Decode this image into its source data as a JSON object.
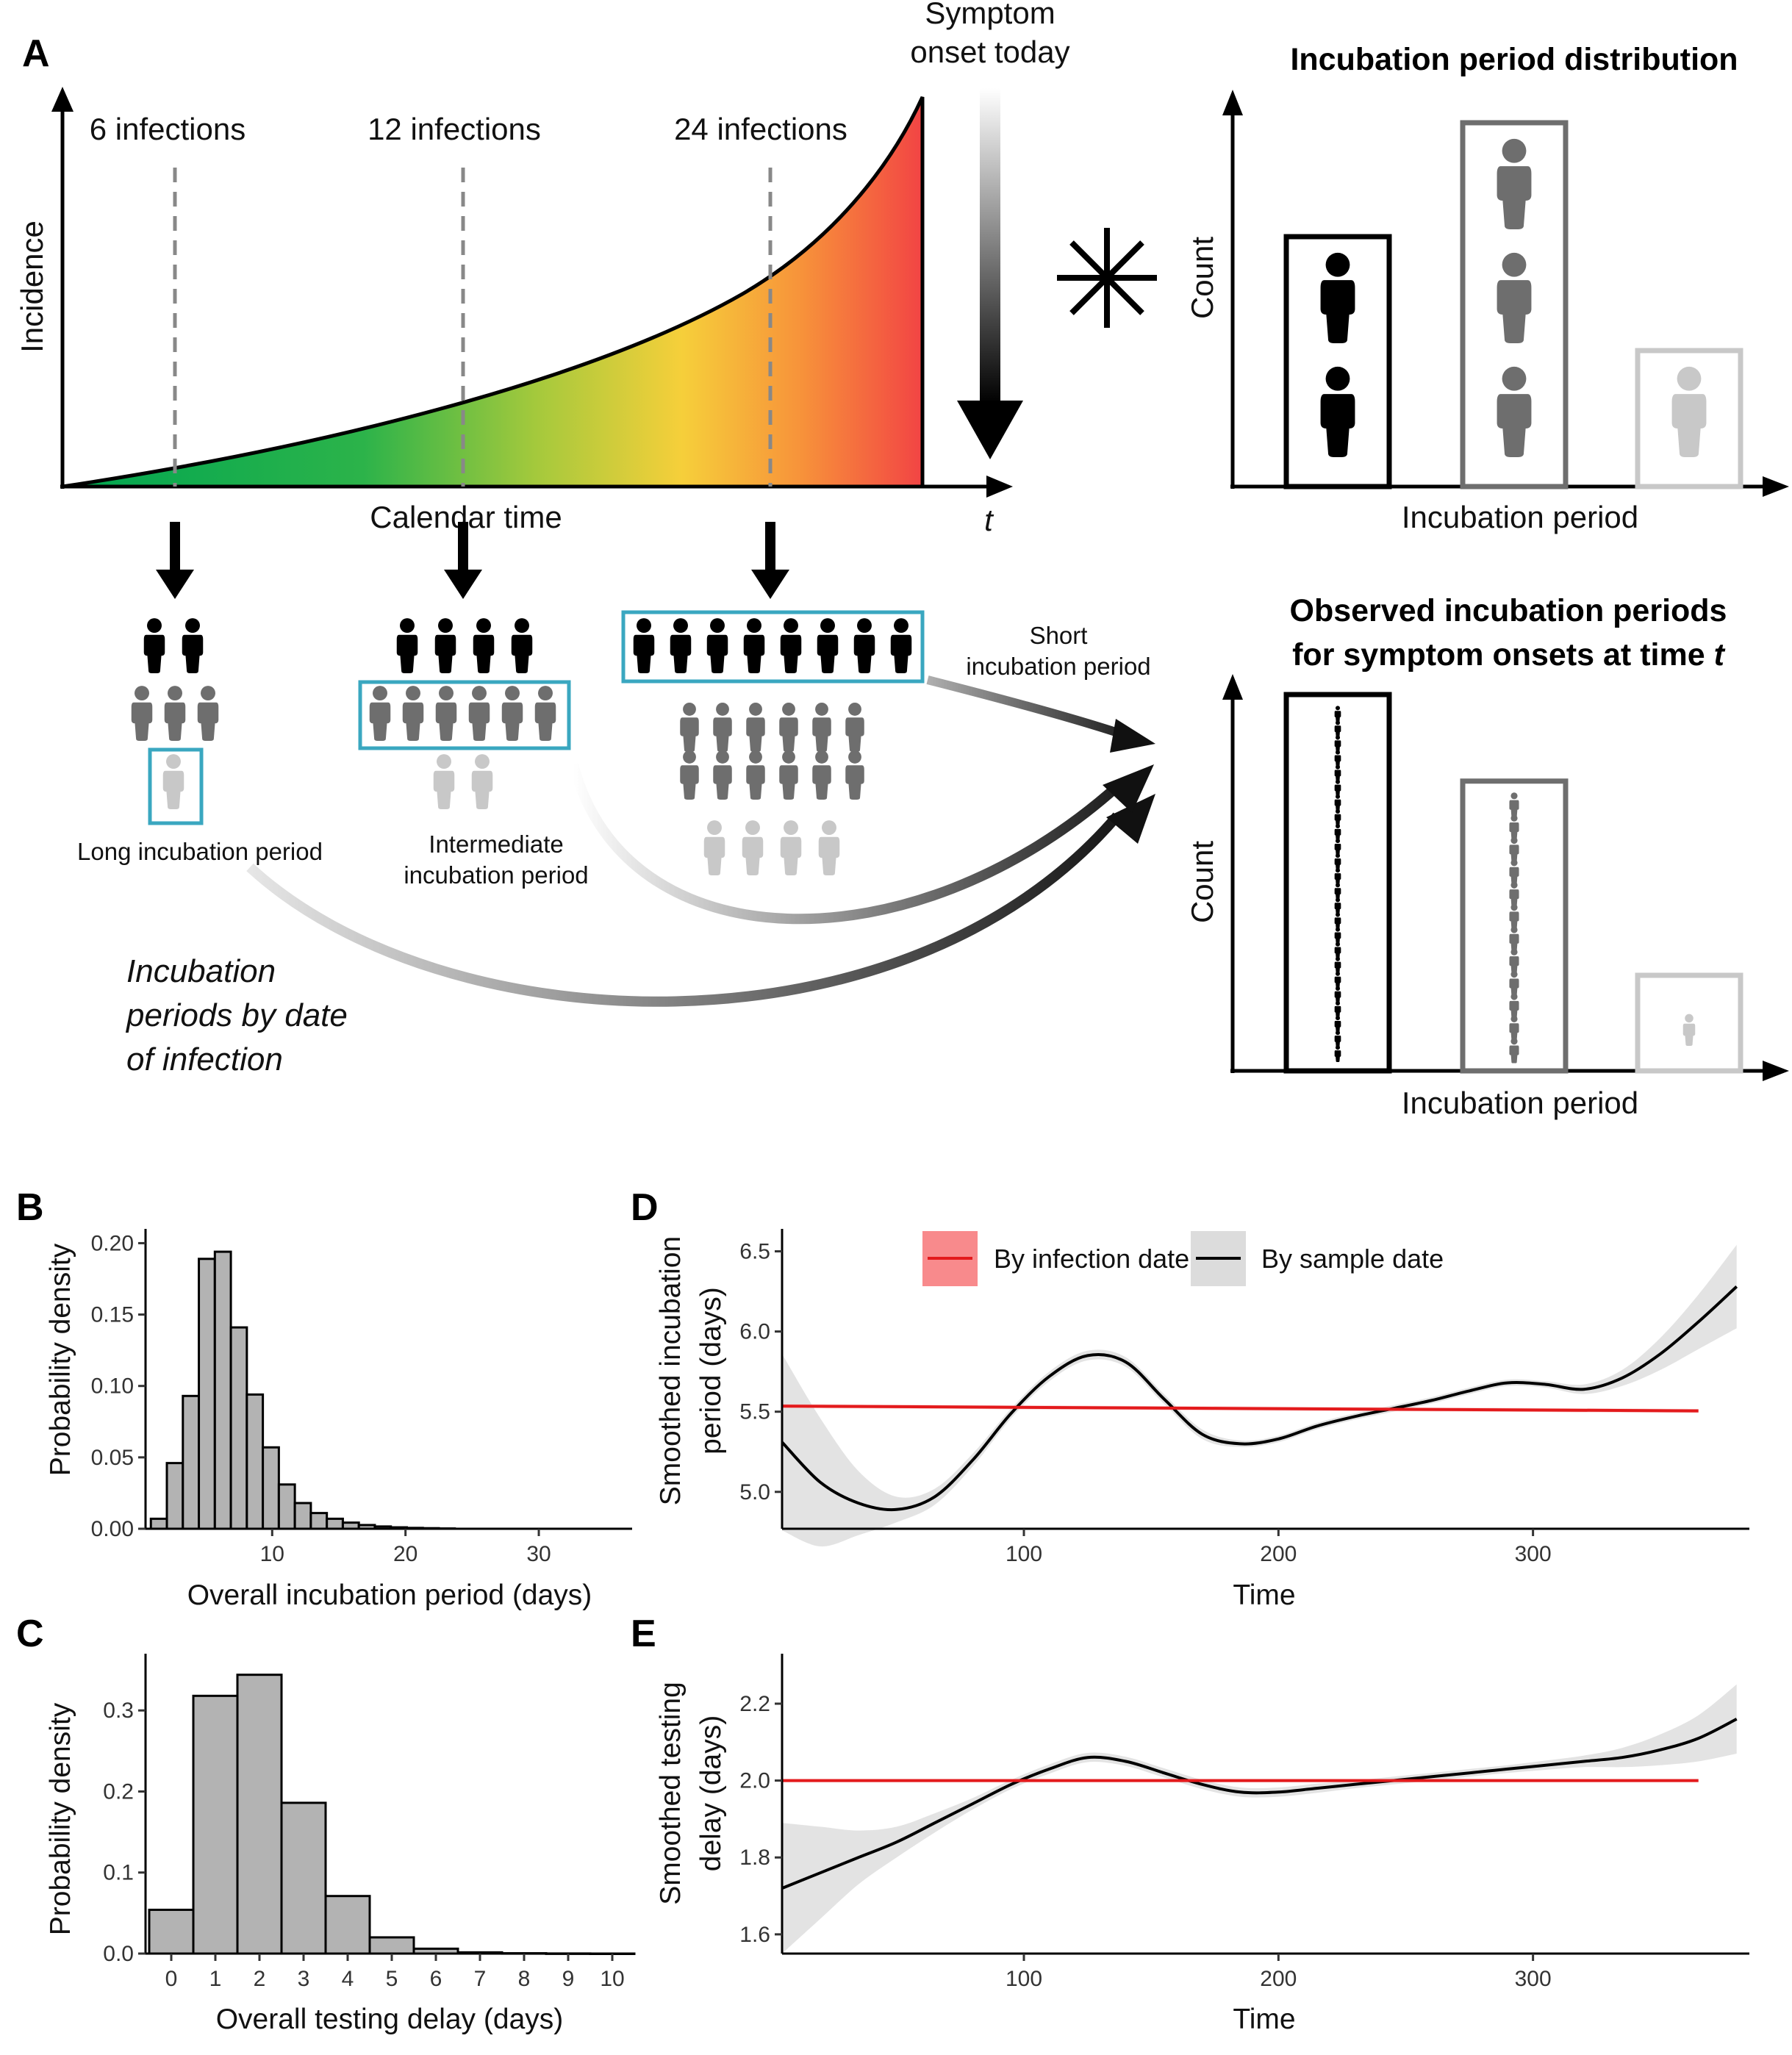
{
  "panel_A": {
    "letter": "A",
    "y_axis_label": "Incidence",
    "x_axis_label": "Calendar time",
    "t_label": "t",
    "onset_label_line1": "Symptom",
    "onset_label_line2": "onset today",
    "infection_labels": [
      "6 infections",
      "12 infections",
      "24 infections"
    ],
    "group_labels": {
      "long": "Long incubation period",
      "intermediate_line1": "Intermediate",
      "intermediate_line2": "incubation period",
      "short_line1": "Short",
      "short_line2": "incubation period"
    },
    "italic_label_lines": [
      "Incubation",
      "periods by date",
      "of infection"
    ],
    "dist_title": "Incubation period distribution",
    "obs_title_line1": "Observed incubation periods",
    "obs_title_line2_prefix": "for symptom onsets at time ",
    "obs_title_line2_t": "t",
    "count_label": "Count",
    "incubation_axis_label": "Incubation period",
    "distribution_counts": [
      2,
      3,
      1
    ],
    "observed_counts": [
      24,
      12,
      1
    ],
    "colors": {
      "short": "#000000",
      "intermediate": "#6e6e6e",
      "long": "#c8c8c8",
      "highlight": "#3aa7c0"
    }
  },
  "panel_B": {
    "letter": "B",
    "chart_data": {
      "type": "bar",
      "xlabel": "Overall incubation period (days)",
      "ylabel": "Probability density",
      "xticks": [
        10,
        20,
        30
      ],
      "yticks": [
        "0.00",
        "0.05",
        "0.10",
        "0.15",
        "0.20"
      ],
      "ylim": [
        0,
        0.21
      ],
      "xlim": [
        0.5,
        37
      ],
      "bin_width": 1.2,
      "bin_start": 0.9,
      "values": [
        0.007,
        0.046,
        0.093,
        0.189,
        0.194,
        0.141,
        0.094,
        0.057,
        0.031,
        0.018,
        0.011,
        0.007,
        0.0043,
        0.0026,
        0.0016,
        0.001,
        0.0006,
        0.0004,
        0.0002
      ]
    }
  },
  "panel_C": {
    "letter": "C",
    "chart_data": {
      "type": "bar",
      "xlabel": "Overall testing delay (days)",
      "ylabel": "Probability density",
      "categories": [
        "0",
        "1",
        "2",
        "3",
        "4",
        "5",
        "6",
        "7",
        "8",
        "9",
        "10"
      ],
      "yticks": [
        "0.0",
        "0.1",
        "0.2",
        "0.3"
      ],
      "ylim": [
        0,
        0.37
      ],
      "values": [
        0.054,
        0.318,
        0.344,
        0.186,
        0.071,
        0.02,
        0.006,
        0.0015,
        0.0004,
        0.0001,
        0.0
      ]
    }
  },
  "panel_D": {
    "letter": "D",
    "chart_data": {
      "type": "line",
      "xlabel": "Time",
      "ylabel_line1": "Smoothed incubation",
      "ylabel_line2": "period (days)",
      "xticks": [
        100,
        200,
        300
      ],
      "yticks": [
        "5.0",
        "5.5",
        "6.0",
        "6.5"
      ],
      "xlim": [
        5,
        385
      ],
      "ylim": [
        4.77,
        6.64
      ],
      "legend": [
        "By infection date",
        "By sample date"
      ],
      "series": [
        {
          "name": "By infection date",
          "color": "#e31a1c",
          "x": [
            5,
            365
          ],
          "y": [
            5.535,
            5.505
          ],
          "band": [
            0.012,
            0.012
          ]
        },
        {
          "name": "By sample date",
          "color": "#000000",
          "x": [
            5,
            20,
            35,
            50,
            65,
            80,
            95,
            110,
            125,
            140,
            155,
            170,
            185,
            200,
            215,
            230,
            245,
            260,
            275,
            290,
            305,
            320,
            335,
            350,
            365,
            380
          ],
          "y": [
            5.31,
            5.06,
            4.93,
            4.89,
            4.97,
            5.2,
            5.49,
            5.72,
            5.85,
            5.81,
            5.58,
            5.36,
            5.3,
            5.33,
            5.41,
            5.47,
            5.52,
            5.57,
            5.63,
            5.68,
            5.67,
            5.64,
            5.71,
            5.86,
            6.06,
            6.28
          ],
          "band": [
            0.55,
            0.4,
            0.2,
            0.08,
            0.05,
            0.04,
            0.03,
            0.03,
            0.03,
            0.03,
            0.03,
            0.03,
            0.02,
            0.02,
            0.02,
            0.02,
            0.02,
            0.02,
            0.02,
            0.02,
            0.02,
            0.03,
            0.05,
            0.1,
            0.17,
            0.26
          ]
        }
      ]
    }
  },
  "panel_E": {
    "letter": "E",
    "chart_data": {
      "type": "line",
      "xlabel": "Time",
      "ylabel_line1": "Smoothed testing",
      "ylabel_line2": "delay (days)",
      "xticks": [
        100,
        200,
        300
      ],
      "yticks": [
        "1.6",
        "1.8",
        "2.0",
        "2.2"
      ],
      "xlim": [
        5,
        385
      ],
      "ylim": [
        1.55,
        2.33
      ],
      "series": [
        {
          "name": "By infection date",
          "color": "#e31a1c",
          "x": [
            5,
            365
          ],
          "y": [
            2.0,
            2.0
          ],
          "band": [
            0.004,
            0.004
          ]
        },
        {
          "name": "By sample date",
          "color": "#000000",
          "x": [
            5,
            20,
            35,
            50,
            65,
            80,
            95,
            110,
            125,
            140,
            155,
            170,
            185,
            200,
            215,
            230,
            245,
            260,
            275,
            290,
            305,
            320,
            335,
            350,
            365,
            380
          ],
          "y": [
            1.72,
            1.76,
            1.8,
            1.84,
            1.89,
            1.94,
            1.99,
            2.03,
            2.06,
            2.05,
            2.02,
            1.99,
            1.97,
            1.97,
            1.98,
            1.99,
            2.0,
            2.01,
            2.02,
            2.03,
            2.04,
            2.05,
            2.06,
            2.08,
            2.11,
            2.16
          ],
          "band": [
            0.17,
            0.12,
            0.07,
            0.04,
            0.025,
            0.015,
            0.012,
            0.012,
            0.012,
            0.012,
            0.012,
            0.012,
            0.012,
            0.012,
            0.012,
            0.01,
            0.01,
            0.01,
            0.01,
            0.01,
            0.012,
            0.015,
            0.025,
            0.04,
            0.06,
            0.09
          ]
        }
      ]
    }
  }
}
